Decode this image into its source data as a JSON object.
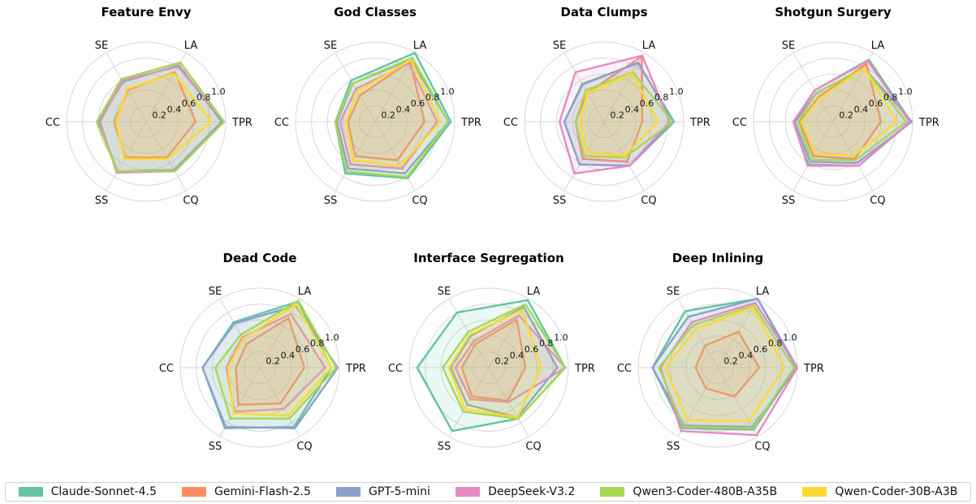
{
  "chart_data": {
    "type": "radar",
    "axes": [
      "TPR",
      "LA",
      "SE",
      "CC",
      "SS",
      "CQ"
    ],
    "radial_ticks": [
      "0.2",
      "0.4",
      "0.6",
      "0.8",
      "1.0"
    ],
    "rlim": [
      0,
      1
    ],
    "grid": true,
    "legend_position": "bottom",
    "series_info": [
      {
        "name": "Claude-Sonnet-4.5",
        "color": "#66c2a5"
      },
      {
        "name": "Gemini-Flash-2.5",
        "color": "#fc8d62"
      },
      {
        "name": "GPT-5-mini",
        "color": "#8da0cb"
      },
      {
        "name": "DeepSeek-V3.2",
        "color": "#e78ac3"
      },
      {
        "name": "Qwen3-Coder-480B-A35B",
        "color": "#a6d854"
      },
      {
        "name": "Qwen-Coder-30B-A3B",
        "color": "#ffd92f"
      }
    ],
    "charts": [
      {
        "title": "Feature Envy",
        "series": [
          [
            0.97,
            0.86,
            0.62,
            0.62,
            0.72,
            0.72
          ],
          [
            0.62,
            0.72,
            0.46,
            0.4,
            0.52,
            0.52
          ],
          [
            0.95,
            0.82,
            0.58,
            0.6,
            0.72,
            0.7
          ],
          [
            0.98,
            0.8,
            0.6,
            0.58,
            0.74,
            0.72
          ],
          [
            0.98,
            0.86,
            0.62,
            0.62,
            0.72,
            0.72
          ],
          [
            0.82,
            0.7,
            0.48,
            0.38,
            0.54,
            0.54
          ]
        ]
      },
      {
        "title": "God Classes",
        "series": [
          [
            0.95,
            1.0,
            0.6,
            0.5,
            0.75,
            0.82
          ],
          [
            0.62,
            0.88,
            0.38,
            0.34,
            0.5,
            0.56
          ],
          [
            0.92,
            0.9,
            0.56,
            0.48,
            0.68,
            0.75
          ],
          [
            0.78,
            0.85,
            0.48,
            0.44,
            0.62,
            0.68
          ],
          [
            0.92,
            0.93,
            0.56,
            0.5,
            0.72,
            0.8
          ],
          [
            0.82,
            0.9,
            0.44,
            0.36,
            0.56,
            0.64
          ]
        ]
      },
      {
        "title": "Data Clumps",
        "series": [
          [
            0.88,
            0.85,
            0.55,
            0.5,
            0.62,
            0.64
          ],
          [
            0.48,
            0.95,
            0.42,
            0.36,
            0.54,
            0.58
          ],
          [
            0.86,
            0.86,
            0.54,
            0.5,
            0.62,
            0.64
          ],
          [
            0.82,
            0.96,
            0.72,
            0.56,
            0.75,
            0.64
          ],
          [
            0.86,
            0.72,
            0.46,
            0.36,
            0.5,
            0.52
          ],
          [
            0.68,
            0.7,
            0.42,
            0.3,
            0.44,
            0.5
          ]
        ]
      },
      {
        "title": "Shotgun Surgery",
        "series": [
          [
            0.98,
            0.9,
            0.46,
            0.5,
            0.62,
            0.64
          ],
          [
            0.6,
            0.84,
            0.36,
            0.42,
            0.5,
            0.54
          ],
          [
            0.99,
            0.78,
            0.42,
            0.48,
            0.58,
            0.6
          ],
          [
            0.96,
            0.88,
            0.46,
            0.5,
            0.64,
            0.64
          ],
          [
            0.92,
            0.78,
            0.42,
            0.44,
            0.55,
            0.56
          ],
          [
            0.8,
            0.78,
            0.34,
            0.4,
            0.46,
            0.5
          ]
        ]
      },
      {
        "title": "Dead Code",
        "series": [
          [
            0.9,
            0.96,
            0.66,
            0.72,
            0.88,
            0.86
          ],
          [
            0.56,
            0.72,
            0.34,
            0.3,
            0.54,
            0.52
          ],
          [
            0.98,
            0.9,
            0.64,
            0.72,
            0.86,
            0.88
          ],
          [
            0.82,
            0.78,
            0.44,
            0.42,
            0.64,
            0.6
          ],
          [
            0.96,
            0.97,
            0.48,
            0.56,
            0.74,
            0.74
          ],
          [
            0.9,
            0.92,
            0.42,
            0.4,
            0.66,
            0.7
          ]
        ]
      },
      {
        "title": "Interface Segregation",
        "series": [
          [
            0.96,
            0.98,
            0.8,
            0.9,
            0.92,
            0.74
          ],
          [
            0.46,
            0.7,
            0.34,
            0.34,
            0.42,
            0.48
          ],
          [
            0.86,
            0.88,
            0.46,
            0.48,
            0.54,
            0.72
          ],
          [
            0.96,
            0.76,
            0.38,
            0.42,
            0.46,
            0.5
          ],
          [
            0.96,
            0.92,
            0.52,
            0.58,
            0.64,
            0.74
          ],
          [
            0.66,
            0.84,
            0.48,
            0.5,
            0.6,
            0.72
          ]
        ]
      },
      {
        "title": "Deep Inlining",
        "series": [
          [
            0.98,
            1.0,
            0.82,
            0.82,
            0.88,
            0.9
          ],
          [
            0.52,
            0.52,
            0.32,
            0.28,
            0.3,
            0.42
          ],
          [
            1.0,
            1.0,
            0.74,
            0.82,
            0.84,
            0.86
          ],
          [
            1.0,
            0.94,
            0.66,
            0.72,
            0.92,
            0.98
          ],
          [
            0.96,
            0.9,
            0.62,
            0.74,
            0.86,
            0.88
          ],
          [
            0.84,
            0.88,
            0.56,
            0.66,
            0.76,
            0.78
          ]
        ]
      }
    ]
  }
}
